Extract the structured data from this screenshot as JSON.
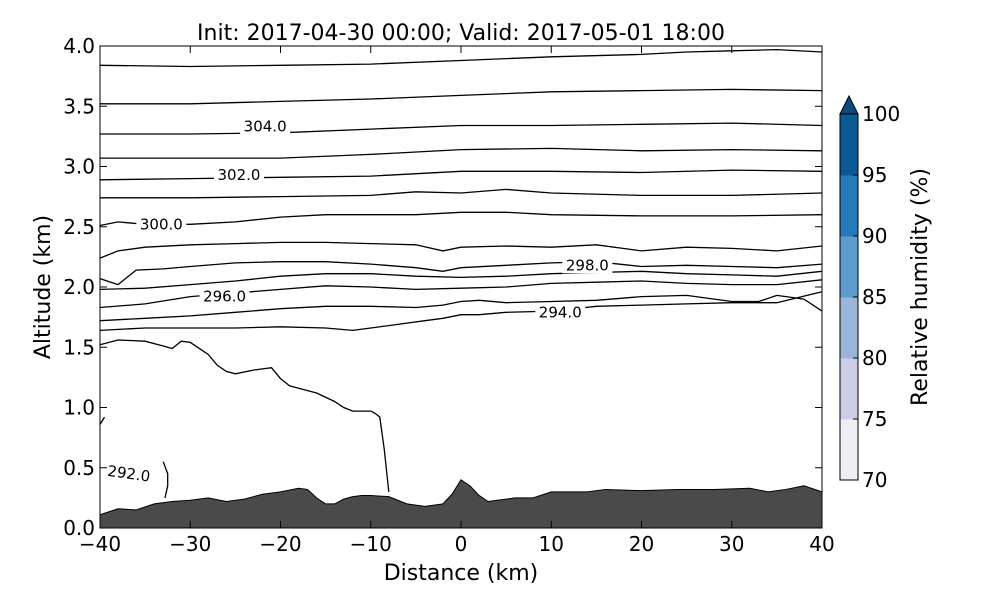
{
  "chart_data": {
    "type": "contour",
    "title": "Init: 2017-04-30 00:00; Valid: 2017-05-01 18:00",
    "xlabel": "Distance (km)",
    "ylabel": "Altitude (km)",
    "xlim": [
      -40,
      40
    ],
    "ylim": [
      0,
      4
    ],
    "xticks": [
      -40,
      -30,
      -20,
      -10,
      0,
      10,
      20,
      30,
      40
    ],
    "xtick_labels": [
      "−40",
      "−30",
      "−20",
      "−10",
      "0",
      "10",
      "20",
      "30",
      "40"
    ],
    "yticks": [
      0,
      0.5,
      1,
      1.5,
      2,
      2.5,
      3,
      3.5,
      4
    ],
    "ytick_labels": [
      "0.0",
      "0.5",
      "1.0",
      "1.5",
      "2.0",
      "2.5",
      "3.0",
      "3.5",
      "4.0"
    ],
    "colorbar": {
      "label": "Relative humidity (%)",
      "ticks": [
        "70",
        "75",
        "80",
        "85",
        "90",
        "95",
        "100"
      ],
      "levels": [
        70,
        75,
        80,
        85,
        90,
        95,
        100
      ],
      "colors": [
        "#efedf5",
        "#cbcde5",
        "#9ab5d8",
        "#5c9ccd",
        "#2679b9",
        "#0b5a95"
      ],
      "extend_color": "#0b4a7a",
      "extend": "max"
    },
    "terrain": {
      "color": "#4a4a4a",
      "x": [
        -40,
        -38,
        -36,
        -34,
        -32,
        -30,
        -28,
        -26,
        -24,
        -22,
        -20,
        -18,
        -17,
        -16,
        -15,
        -14,
        -13,
        -12,
        -11,
        -10,
        -8,
        -6,
        -4,
        -2,
        -1,
        0,
        1,
        2,
        3,
        4,
        6,
        8,
        10,
        12,
        14,
        16,
        20,
        24,
        28,
        32,
        34,
        36,
        38,
        40
      ],
      "y": [
        0.11,
        0.16,
        0.15,
        0.2,
        0.22,
        0.23,
        0.25,
        0.22,
        0.24,
        0.28,
        0.3,
        0.33,
        0.32,
        0.25,
        0.2,
        0.2,
        0.24,
        0.26,
        0.27,
        0.27,
        0.26,
        0.2,
        0.18,
        0.2,
        0.28,
        0.4,
        0.35,
        0.27,
        0.22,
        0.23,
        0.25,
        0.25,
        0.3,
        0.3,
        0.3,
        0.32,
        0.31,
        0.32,
        0.32,
        0.33,
        0.3,
        0.32,
        0.35,
        0.3
      ]
    },
    "contours": [
      {
        "x": [
          -40,
          -30,
          -20,
          -10,
          0,
          10,
          20,
          25,
          30,
          35,
          40
        ],
        "y": [
          3.84,
          3.83,
          3.84,
          3.85,
          3.88,
          3.91,
          3.93,
          3.95,
          3.96,
          3.97,
          3.95
        ]
      },
      {
        "x": [
          -40,
          -30,
          -20,
          -10,
          0,
          10,
          20,
          30,
          40
        ],
        "y": [
          3.52,
          3.52,
          3.54,
          3.56,
          3.59,
          3.62,
          3.63,
          3.64,
          3.63
        ]
      },
      {
        "x": [
          -40,
          -30,
          -20,
          -10,
          0,
          10,
          20,
          30,
          40
        ],
        "y": [
          3.27,
          3.27,
          3.28,
          3.31,
          3.34,
          3.34,
          3.35,
          3.36,
          3.34
        ]
      },
      {
        "x": [
          -40,
          -30,
          -20,
          -10,
          0,
          10,
          20,
          30,
          40
        ],
        "y": [
          3.07,
          3.07,
          3.07,
          3.1,
          3.14,
          3.15,
          3.13,
          3.14,
          3.13
        ]
      },
      {
        "x": [
          -40,
          -30,
          -20,
          -10,
          0,
          10,
          20,
          30,
          40
        ],
        "y": [
          2.89,
          2.9,
          2.91,
          2.92,
          2.96,
          2.96,
          2.95,
          2.97,
          2.96
        ]
      },
      {
        "x": [
          -40,
          -30,
          -20,
          -10,
          -5,
          0,
          5,
          10,
          20,
          30,
          40
        ],
        "y": [
          2.74,
          2.74,
          2.75,
          2.76,
          2.79,
          2.78,
          2.81,
          2.78,
          2.76,
          2.76,
          2.78
        ]
      },
      {
        "x": [
          -40,
          -38,
          -35,
          -30,
          -25,
          -20,
          -15,
          -10,
          -5,
          0,
          5,
          10,
          20,
          30,
          40
        ],
        "y": [
          2.51,
          2.54,
          2.52,
          2.52,
          2.54,
          2.58,
          2.6,
          2.6,
          2.6,
          2.62,
          2.62,
          2.6,
          2.59,
          2.59,
          2.6
        ]
      },
      {
        "x": [
          -40,
          -38,
          -35,
          -30,
          -25,
          -20,
          -15,
          -10,
          -5,
          -2,
          0,
          5,
          10,
          15,
          20,
          25,
          30,
          35,
          40
        ],
        "y": [
          2.24,
          2.3,
          2.33,
          2.35,
          2.36,
          2.37,
          2.37,
          2.36,
          2.35,
          2.3,
          2.33,
          2.34,
          2.33,
          2.35,
          2.3,
          2.33,
          2.32,
          2.3,
          2.34
        ]
      },
      {
        "x": [
          -40,
          -38,
          -36,
          -33,
          -30,
          -25,
          -20,
          -15,
          -10,
          -5,
          -2,
          0,
          5,
          10,
          15,
          20,
          25,
          30,
          35,
          40
        ],
        "y": [
          2.07,
          2.02,
          2.14,
          2.15,
          2.17,
          2.2,
          2.21,
          2.21,
          2.19,
          2.16,
          2.13,
          2.16,
          2.18,
          2.2,
          2.21,
          2.17,
          2.18,
          2.17,
          2.16,
          2.19
        ]
      },
      {
        "x": [
          -40,
          -35,
          -30,
          -25,
          -20,
          -15,
          -10,
          -5,
          0,
          5,
          10,
          15,
          20,
          25,
          30,
          35,
          40
        ],
        "y": [
          1.98,
          1.99,
          2.02,
          2.05,
          2.09,
          2.11,
          2.11,
          2.09,
          2.08,
          2.09,
          2.11,
          2.12,
          2.13,
          2.11,
          2.1,
          2.09,
          2.13
        ]
      },
      {
        "x": [
          -40,
          -35,
          -30,
          -25,
          -20,
          -15,
          -10,
          -5,
          0,
          5,
          10,
          15,
          20,
          25,
          30,
          35,
          40
        ],
        "y": [
          1.83,
          1.86,
          1.92,
          1.95,
          1.98,
          2.01,
          2.0,
          1.98,
          1.99,
          2.0,
          2.03,
          2.04,
          2.05,
          2.03,
          2.02,
          2.02,
          2.06
        ]
      },
      {
        "x": [
          -40,
          -35,
          -30,
          -25,
          -20,
          -15,
          -10,
          -5,
          -2,
          0,
          2,
          5,
          10,
          15,
          20,
          25,
          30,
          33,
          35,
          38,
          40
        ],
        "y": [
          1.72,
          1.74,
          1.76,
          1.79,
          1.82,
          1.84,
          1.84,
          1.83,
          1.85,
          1.88,
          1.89,
          1.87,
          1.88,
          1.89,
          1.92,
          1.93,
          1.88,
          1.88,
          1.93,
          1.9,
          1.8
        ]
      },
      {
        "x": [
          -40,
          -35,
          -30,
          -25,
          -20,
          -15,
          -12,
          -10,
          -8,
          -6,
          -4,
          -2,
          0,
          2,
          5,
          10,
          15,
          20,
          25,
          30,
          35,
          40
        ],
        "y": [
          1.64,
          1.66,
          1.66,
          1.66,
          1.67,
          1.66,
          1.64,
          1.66,
          1.68,
          1.7,
          1.72,
          1.74,
          1.77,
          1.77,
          1.79,
          1.8,
          1.84,
          1.85,
          1.86,
          1.87,
          1.87,
          1.96
        ]
      },
      {
        "x": [
          -40,
          -38,
          -35,
          -33,
          -32,
          -31,
          -30,
          -28,
          -27,
          -26,
          -25,
          -23,
          -21,
          -20,
          -19,
          -18,
          -16,
          -14,
          -13,
          -12,
          -11,
          -10,
          -9.5,
          -9,
          -8.5,
          -8
        ],
        "y": [
          1.52,
          1.56,
          1.55,
          1.51,
          1.49,
          1.55,
          1.54,
          1.44,
          1.35,
          1.3,
          1.28,
          1.31,
          1.33,
          1.24,
          1.18,
          1.16,
          1.12,
          1.05,
          1.0,
          0.97,
          0.97,
          0.97,
          0.95,
          0.92,
          0.65,
          0.3
        ]
      },
      {
        "x": [
          -40,
          -39.5
        ],
        "y": [
          0.86,
          0.92
        ]
      },
      {
        "x": [
          -33,
          -32.5,
          -32.5,
          -32.8
        ],
        "y": [
          0.55,
          0.45,
          0.35,
          0.25
        ]
      }
    ],
    "contour_labels": [
      {
        "text": "304.0",
        "x": -21.7,
        "y": 3.33
      },
      {
        "text": "302.0",
        "x": -24.6,
        "y": 2.93
      },
      {
        "text": "300.0",
        "x": -33.2,
        "y": 2.52
      },
      {
        "text": "298.0",
        "x": 14.0,
        "y": 2.18
      },
      {
        "text": "296.0",
        "x": -26.2,
        "y": 1.92
      },
      {
        "text": "294.0",
        "x": 11.0,
        "y": 1.79
      },
      {
        "text": "292.0",
        "x": -36.8,
        "y": 0.45,
        "rotate": 8
      }
    ]
  }
}
